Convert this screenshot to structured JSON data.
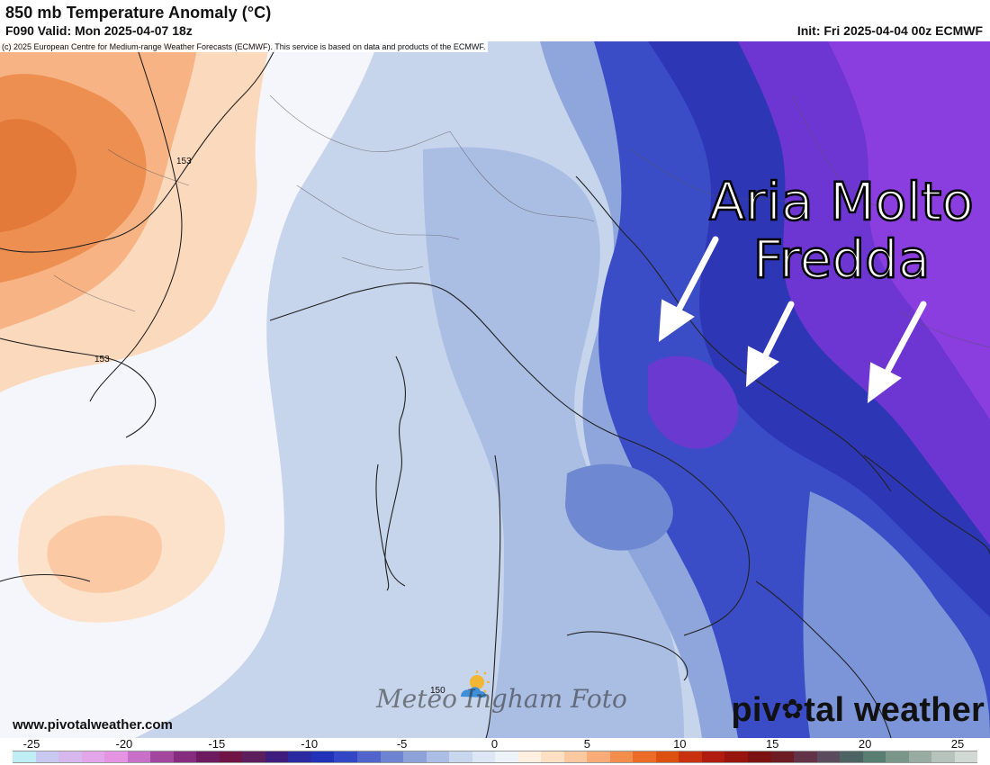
{
  "header": {
    "title": "850 mb Temperature Anomaly (°C)",
    "valid": "F090 Valid: Mon 2025-04-07 18z",
    "init": "Init: Fri 2025-04-04 00z ECMWF",
    "credit": "(c) 2025 European Centre for Medium-range Weather Forecasts (ECMWF). This service is based on data and products of the ECMWF."
  },
  "map": {
    "contour_labels": [
      "153",
      "153",
      "150"
    ],
    "callout_line1": "Aria Molto",
    "callout_line2": "Fredda"
  },
  "footer": {
    "site": "www.pivotalweather.com",
    "brand_left": "piv",
    "brand_right": "tal weather",
    "watermark": "Meteo Ingham Foto"
  },
  "colorbar": {
    "ticks": [
      "-25",
      "-20",
      "-15",
      "-10",
      "-5",
      "0",
      "5",
      "10",
      "15",
      "20",
      "25"
    ],
    "colors": [
      "#bfeef5",
      "#c8c8f0",
      "#d6b8ee",
      "#e4a6ea",
      "#e494e0",
      "#c870c8",
      "#a3479e",
      "#862c7e",
      "#6d1a5e",
      "#701446",
      "#5c1e5c",
      "#3e1d7e",
      "#2c2aa0",
      "#2232b8",
      "#3346c6",
      "#5164cc",
      "#6e84d2",
      "#8ea2da",
      "#adbee6",
      "#c8d6ee",
      "#dde6f4",
      "#eef2f9",
      "#fff0e2",
      "#fde0c4",
      "#fcc8a0",
      "#f9ac78",
      "#f38d4c",
      "#ea6c26",
      "#dc5010",
      "#c8300e",
      "#b01c10",
      "#98140e",
      "#7c1212",
      "#6e1c24",
      "#623246",
      "#5c4a5e",
      "#4e6462",
      "#587e72",
      "#7a968a",
      "#98aca2",
      "#b6c2bc",
      "#d2d8d4"
    ]
  }
}
